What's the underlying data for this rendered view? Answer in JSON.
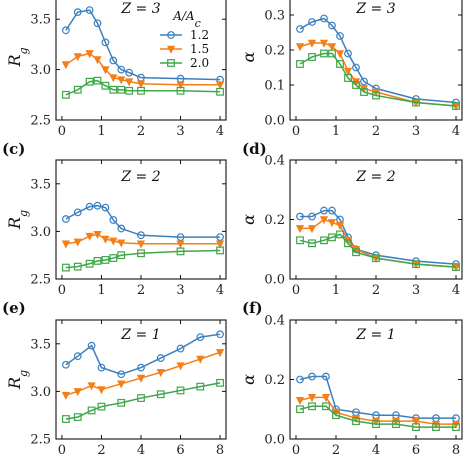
{
  "colors": {
    "1.2": "#3b7fbf",
    "1.5": "#f57f17",
    "2.0": "#3fa64a",
    "axes": "#111111"
  },
  "legend": {
    "title": "A/A_c",
    "entries": [
      "1.2",
      "1.5",
      "2.0"
    ]
  },
  "chart_data": [
    {
      "type": "line",
      "panel": "",
      "z_label": "Z = 3",
      "ylabel": "R_g",
      "xlim": [
        -0.15,
        4.15
      ],
      "ylim": [
        2.5,
        3.75
      ],
      "xticks": [
        0,
        1,
        2,
        3,
        4
      ],
      "yticks": [
        2.5,
        3.0,
        3.5
      ],
      "xtick_labels": [
        "0",
        "1",
        "2",
        "3",
        "4"
      ],
      "ytick_labels": [
        "2.5",
        "3.0",
        "3.5"
      ],
      "x": [
        0.1,
        0.4,
        0.7,
        0.9,
        1.1,
        1.3,
        1.5,
        1.7,
        2.0,
        3.0,
        4.0
      ],
      "series": [
        {
          "name": "1.2",
          "marker": "circle",
          "values": [
            3.39,
            3.57,
            3.59,
            3.46,
            3.27,
            3.09,
            3.0,
            2.97,
            2.92,
            2.91,
            2.9
          ]
        },
        {
          "name": "1.5",
          "marker": "triangle",
          "values": [
            3.05,
            3.13,
            3.16,
            3.1,
            3.0,
            2.92,
            2.9,
            2.88,
            2.86,
            2.85,
            2.85
          ]
        },
        {
          "name": "2.0",
          "marker": "square",
          "values": [
            2.75,
            2.8,
            2.88,
            2.89,
            2.84,
            2.8,
            2.8,
            2.79,
            2.79,
            2.79,
            2.78
          ]
        }
      ]
    },
    {
      "type": "line",
      "panel": "",
      "z_label": "Z = 3",
      "ylabel": "α",
      "xlim": [
        -0.15,
        4.15
      ],
      "ylim": [
        0.0,
        0.36
      ],
      "xticks": [
        0,
        1,
        2,
        3,
        4
      ],
      "yticks": [
        0.0,
        0.1,
        0.2,
        0.3
      ],
      "xtick_labels": [
        "0",
        "1",
        "2",
        "3",
        "4"
      ],
      "ytick_labels": [
        "0.0",
        "0.1",
        "0.2",
        "0.3"
      ],
      "x": [
        0.1,
        0.4,
        0.7,
        0.9,
        1.1,
        1.3,
        1.5,
        1.7,
        2.0,
        3.0,
        4.0
      ],
      "series": [
        {
          "name": "1.2",
          "marker": "circle",
          "values": [
            0.26,
            0.28,
            0.29,
            0.27,
            0.24,
            0.19,
            0.15,
            0.11,
            0.09,
            0.06,
            0.05
          ]
        },
        {
          "name": "1.5",
          "marker": "triangle",
          "values": [
            0.21,
            0.22,
            0.22,
            0.21,
            0.19,
            0.14,
            0.11,
            0.09,
            0.08,
            0.05,
            0.04
          ]
        },
        {
          "name": "2.0",
          "marker": "square",
          "values": [
            0.16,
            0.18,
            0.19,
            0.19,
            0.16,
            0.12,
            0.1,
            0.08,
            0.07,
            0.05,
            0.04
          ]
        }
      ]
    },
    {
      "type": "line",
      "panel": "(c)",
      "z_label": "Z = 2",
      "ylabel": "R_g",
      "xlim": [
        -0.15,
        4.15
      ],
      "ylim": [
        2.5,
        3.75
      ],
      "xticks": [
        0,
        1,
        2,
        3,
        4
      ],
      "yticks": [
        2.5,
        3.0,
        3.5
      ],
      "xtick_labels": [
        "0",
        "1",
        "2",
        "3",
        "4"
      ],
      "ytick_labels": [
        "2.5",
        "3.0",
        "3.5"
      ],
      "x": [
        0.1,
        0.4,
        0.7,
        0.9,
        1.1,
        1.3,
        1.5,
        2.0,
        3.0,
        4.0
      ],
      "series": [
        {
          "name": "1.2",
          "marker": "circle",
          "values": [
            3.13,
            3.2,
            3.26,
            3.27,
            3.25,
            3.12,
            3.03,
            2.96,
            2.94,
            2.94
          ]
        },
        {
          "name": "1.5",
          "marker": "triangle",
          "values": [
            2.87,
            2.89,
            2.95,
            2.97,
            2.92,
            2.9,
            2.88,
            2.87,
            2.87,
            2.87
          ]
        },
        {
          "name": "2.0",
          "marker": "square",
          "values": [
            2.62,
            2.63,
            2.66,
            2.69,
            2.7,
            2.72,
            2.75,
            2.77,
            2.79,
            2.8
          ]
        }
      ]
    },
    {
      "type": "line",
      "panel": "(d)",
      "z_label": "Z = 2",
      "ylabel": "α",
      "xlim": [
        -0.15,
        4.15
      ],
      "ylim": [
        0.0,
        0.4
      ],
      "xticks": [
        0,
        1,
        2,
        3,
        4
      ],
      "yticks": [
        0.0,
        0.2,
        0.4
      ],
      "xtick_labels": [
        "0",
        "1",
        "2",
        "3",
        "4"
      ],
      "ytick_labels": [
        "0.0",
        "0.2",
        "0.4"
      ],
      "x": [
        0.1,
        0.4,
        0.7,
        0.9,
        1.1,
        1.3,
        1.5,
        2.0,
        3.0,
        4.0
      ],
      "series": [
        {
          "name": "1.2",
          "marker": "circle",
          "values": [
            0.21,
            0.21,
            0.23,
            0.23,
            0.2,
            0.14,
            0.1,
            0.08,
            0.06,
            0.05
          ]
        },
        {
          "name": "1.5",
          "marker": "triangle",
          "values": [
            0.17,
            0.17,
            0.2,
            0.19,
            0.18,
            0.13,
            0.1,
            0.07,
            0.05,
            0.04
          ]
        },
        {
          "name": "2.0",
          "marker": "square",
          "values": [
            0.13,
            0.12,
            0.13,
            0.14,
            0.15,
            0.12,
            0.09,
            0.07,
            0.05,
            0.04
          ]
        }
      ]
    },
    {
      "type": "line",
      "panel": "(e)",
      "z_label": "Z = 1",
      "ylabel": "R_g",
      "xlim": [
        -0.3,
        8.3
      ],
      "ylim": [
        2.5,
        3.75
      ],
      "xticks": [
        0,
        2,
        4,
        6,
        8
      ],
      "yticks": [
        2.5,
        3.0,
        3.5
      ],
      "xtick_labels": [
        "0",
        "2",
        "4",
        "6",
        "8"
      ],
      "ytick_labels": [
        "2.5",
        "3.0",
        "3.5"
      ],
      "x": [
        0.2,
        0.8,
        1.5,
        2.0,
        3.0,
        4.0,
        5.0,
        6.0,
        7.0,
        8.0
      ],
      "series": [
        {
          "name": "1.2",
          "marker": "circle",
          "values": [
            3.28,
            3.37,
            3.48,
            3.25,
            3.18,
            3.25,
            3.35,
            3.45,
            3.57,
            3.6
          ]
        },
        {
          "name": "1.5",
          "marker": "triangle",
          "values": [
            2.96,
            3.0,
            3.06,
            3.02,
            3.08,
            3.14,
            3.2,
            3.27,
            3.34,
            3.41
          ]
        },
        {
          "name": "2.0",
          "marker": "square",
          "values": [
            2.71,
            2.73,
            2.8,
            2.84,
            2.88,
            2.93,
            2.97,
            3.01,
            3.05,
            3.09
          ]
        }
      ]
    },
    {
      "type": "line",
      "panel": "(f)",
      "z_label": "Z = 1",
      "ylabel": "α",
      "xlim": [
        -0.3,
        8.3
      ],
      "ylim": [
        0.0,
        0.4
      ],
      "xticks": [
        0,
        2,
        4,
        6,
        8
      ],
      "yticks": [
        0.0,
        0.2,
        0.4
      ],
      "xtick_labels": [
        "0",
        "2",
        "4",
        "6",
        "8"
      ],
      "ytick_labels": [
        "0.0",
        "0.2",
        "0.4"
      ],
      "x": [
        0.2,
        0.8,
        1.5,
        2.0,
        3.0,
        4.0,
        5.0,
        6.0,
        7.0,
        8.0
      ],
      "series": [
        {
          "name": "1.2",
          "marker": "circle",
          "values": [
            0.2,
            0.21,
            0.21,
            0.1,
            0.09,
            0.08,
            0.08,
            0.07,
            0.07,
            0.07
          ]
        },
        {
          "name": "1.5",
          "marker": "triangle",
          "values": [
            0.13,
            0.14,
            0.14,
            0.09,
            0.07,
            0.06,
            0.06,
            0.06,
            0.05,
            0.05
          ]
        },
        {
          "name": "2.0",
          "marker": "square",
          "values": [
            0.1,
            0.11,
            0.11,
            0.08,
            0.06,
            0.05,
            0.05,
            0.04,
            0.04,
            0.04
          ]
        }
      ]
    }
  ]
}
